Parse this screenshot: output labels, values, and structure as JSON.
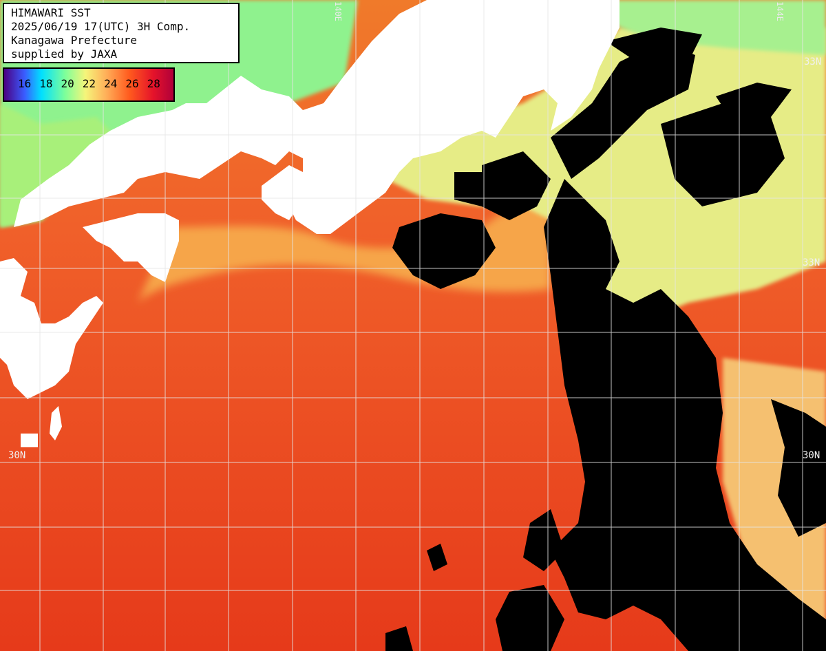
{
  "header": {
    "line1": "HIMAWARI SST",
    "line2": "2025/06/19 17(UTC) 3H Comp.",
    "line3": "Kanagawa Prefecture",
    "line4": "supplied by JAXA"
  },
  "legend": {
    "unit_labels": [
      "16",
      "18",
      "20",
      "22",
      "24",
      "26",
      "28"
    ]
  },
  "grid_labels": {
    "lat_33_left": "33N",
    "lat_33_right": "33N",
    "lat_30_left": "30N",
    "lat_30_right": "30N",
    "lon_top_mid": "140E",
    "lon_top_right": "144E"
  },
  "colors": {
    "land": "#ffffff",
    "cloud": "#000000",
    "warm": "#ee4a1c",
    "mid": "#f59a3c",
    "cool": "#e8ef7c",
    "coast": "#7df0a0",
    "grid": "#dddddd"
  }
}
